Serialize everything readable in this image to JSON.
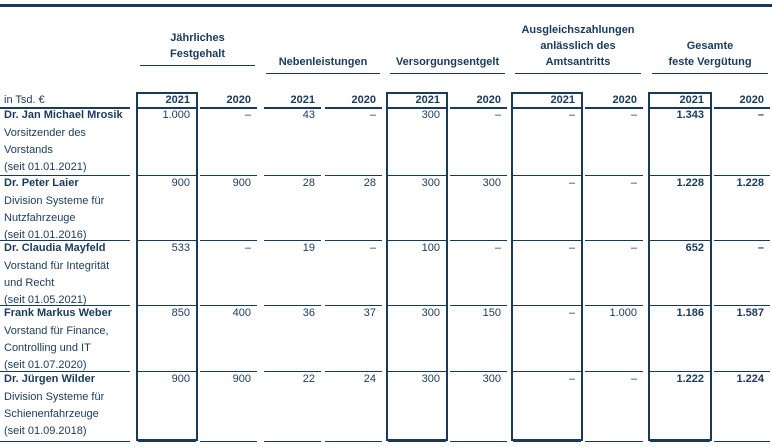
{
  "table": {
    "unit_label": "in Tsd. €",
    "column_groups": [
      {
        "key": "festgehalt",
        "lines": [
          "Jährliches",
          "Festgehalt"
        ]
      },
      {
        "key": "nebenleistungen",
        "lines": [
          "Nebenleistungen"
        ]
      },
      {
        "key": "versorgung",
        "lines": [
          "Versorgungsentgelt"
        ]
      },
      {
        "key": "ausgleich",
        "lines": [
          "Ausgleichszahlungen",
          "anlässlich des",
          "Amtsantritts"
        ]
      },
      {
        "key": "gesamt",
        "lines": [
          "Gesamte",
          "feste Vergütung"
        ]
      }
    ],
    "years": [
      "2021",
      "2020"
    ],
    "rows": [
      {
        "name": "Dr. Jan Michael Mrosik",
        "desc": [
          "Vorsitzender des",
          "Vorstands",
          "(seit 01.01.2021)"
        ],
        "values": [
          "1.000",
          "–",
          "43",
          "–",
          "300",
          "–",
          "–",
          "–",
          "1.343",
          "–"
        ]
      },
      {
        "name": "Dr. Peter Laier",
        "desc": [
          "Division Systeme für",
          "Nutzfahrzeuge",
          "(seit 01.01.2016)"
        ],
        "values": [
          "900",
          "900",
          "28",
          "28",
          "300",
          "300",
          "–",
          "–",
          "1.228",
          "1.228"
        ]
      },
      {
        "name": "Dr. Claudia Mayfeld",
        "desc": [
          "Vorstand für Integrität",
          "und Recht",
          "(seit 01.05.2021)"
        ],
        "values": [
          "533",
          "–",
          "19",
          "–",
          "100",
          "–",
          "–",
          "–",
          "652",
          "–"
        ]
      },
      {
        "name": "Frank Markus Weber",
        "desc": [
          "Vorstand für Finance,",
          "Controlling und IT",
          "(seit 01.07.2020)"
        ],
        "values": [
          "850",
          "400",
          "36",
          "37",
          "300",
          "150",
          "–",
          "1.000",
          "1.186",
          "1.587"
        ]
      },
      {
        "name": "Dr. Jürgen Wilder",
        "desc": [
          "Division Systeme für",
          "Schienenfahrzeuge",
          "(seit 01.09.2018)"
        ],
        "values": [
          "900",
          "900",
          "22",
          "24",
          "300",
          "300",
          "–",
          "–",
          "1.222",
          "1.224"
        ]
      }
    ]
  }
}
